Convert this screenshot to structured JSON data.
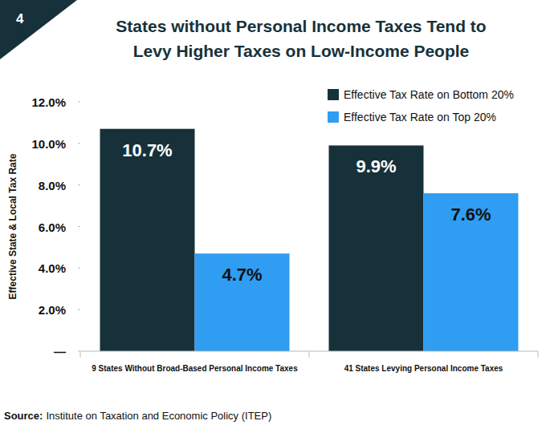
{
  "chart_data": {
    "type": "bar",
    "figure_number": "4",
    "title": "States without Personal Income Taxes Tend to\nLevy Higher Taxes on Low-Income People",
    "y_label": "Effective State & Local Tax Rate",
    "categories": [
      "9 States Without Broad-Based Personal Income Taxes",
      "41 States Levying Personal Income Taxes"
    ],
    "series": [
      {
        "name": "Effective Tax Rate on Bottom 20%",
        "color": "#17313a",
        "values": [
          10.7,
          9.9
        ],
        "value_labels": [
          "10.7%",
          "9.9%"
        ]
      },
      {
        "name": "Effective Tax Rate on Top 20%",
        "color": "#2f9df2",
        "values": [
          4.7,
          7.6
        ],
        "value_labels": [
          "4.7%",
          "7.6%"
        ]
      }
    ],
    "ylim": [
      0,
      12
    ],
    "yticks": [
      {
        "value": 0,
        "label": "—"
      },
      {
        "value": 2,
        "label": "2.0%"
      },
      {
        "value": 4,
        "label": "4.0%"
      },
      {
        "value": 6,
        "label": "6.0%"
      },
      {
        "value": 8,
        "label": "8.0%"
      },
      {
        "value": 10,
        "label": "10.0%"
      },
      {
        "value": 12,
        "label": "12.0%"
      }
    ],
    "grid": false,
    "legend": "upper-right",
    "data_labels": true,
    "source_label": "Source:",
    "source": "Institute on Taxation and Economic Policy (ITEP)"
  }
}
